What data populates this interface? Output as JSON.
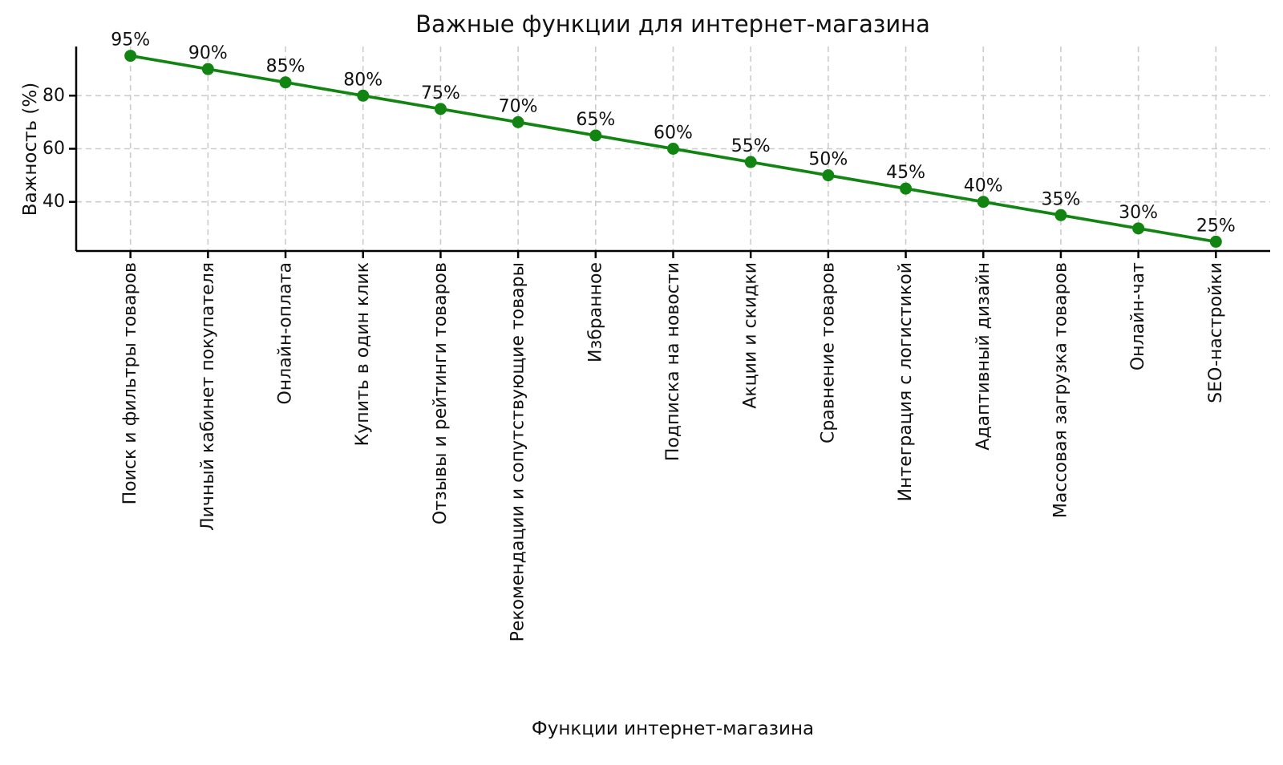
{
  "figure": {
    "background": "#ffffff"
  },
  "chart_data": {
    "type": "line",
    "title": "Важные функции для интернет-магазина",
    "xlabel": "Функции интернет-магазина",
    "ylabel": "Важность (%)",
    "categories": [
      "Поиск и фильтры товаров",
      "Личный кабинет покупателя",
      "Онлайн-оплата",
      "Купить в один клик",
      "Отзывы и рейтинги товаров",
      "Рекомендации и сопутствующие товары",
      "Избранное",
      "Подписка на новости",
      "Акции и скидки",
      "Сравнение товаров",
      "Интеграция с логистикой",
      "Адаптивный дизайн",
      "Массовая загрузка товаров",
      "Онлайн-чат",
      "SEO-настройки"
    ],
    "values": [
      95,
      90,
      85,
      80,
      75,
      70,
      65,
      60,
      55,
      50,
      45,
      40,
      35,
      30,
      25
    ],
    "data_labels": [
      "95%",
      "90%",
      "85%",
      "80%",
      "75%",
      "70%",
      "65%",
      "60%",
      "55%",
      "50%",
      "45%",
      "40%",
      "35%",
      "30%",
      "25%"
    ],
    "yticks": [
      40,
      60,
      80
    ],
    "ylim": [
      21.5,
      98.5
    ],
    "grid": true,
    "grid_style": "dashed",
    "legend": "none",
    "line_color": "#128412",
    "marker": "circle",
    "grid_color": "#cccccc",
    "spine_color": "#000000",
    "text_color": "#111111"
  }
}
